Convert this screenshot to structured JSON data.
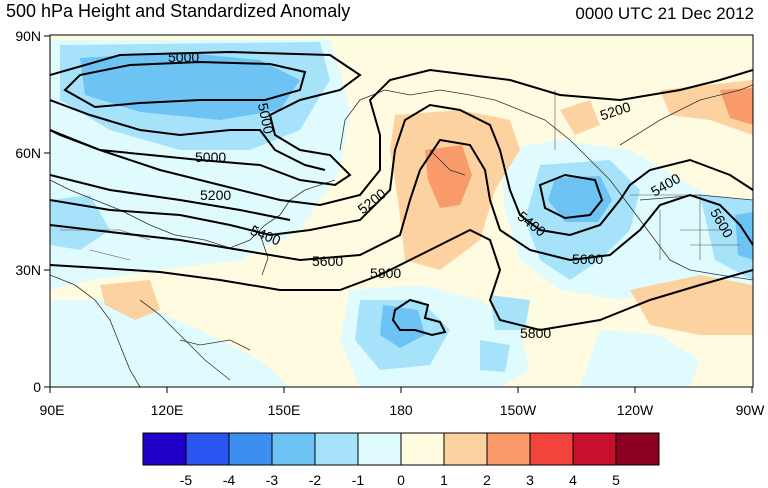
{
  "header": {
    "title": "500 hPa Height and Standardized Anomaly",
    "valid_time": "0000 UTC 21 Dec 2012"
  },
  "axes": {
    "lat_ticks": [
      "90N",
      "60N",
      "30N",
      "0"
    ],
    "lon_ticks": [
      "90E",
      "120E",
      "150E",
      "180",
      "150W",
      "120W",
      "90W"
    ]
  },
  "contour_labels": [
    "5000",
    "5000",
    "5000",
    "5200",
    "5200",
    "5200",
    "5400",
    "5400",
    "5400",
    "5600",
    "5600",
    "5600",
    "5800",
    "5800"
  ],
  "colorbar": {
    "labels": [
      "-5",
      "-4",
      "-3",
      "-2",
      "-1",
      "0",
      "1",
      "2",
      "3",
      "4",
      "5"
    ],
    "colors": [
      "#1f00c8",
      "#2a55f0",
      "#3c8ff0",
      "#6ec3f5",
      "#a6e3fa",
      "#e0fbfd",
      "#fffbe0",
      "#fcd3a0",
      "#f89a6a",
      "#f2433c",
      "#c8102e",
      "#8b0020"
    ]
  },
  "palette": {
    "neg1": "#e0fbfd",
    "neg2": "#a6e3fa",
    "neg3": "#6ec3f5",
    "pos1": "#fffbe0",
    "pos2": "#fcd3a0",
    "pos3": "#f89a6a",
    "ocean": "#fffef4"
  }
}
